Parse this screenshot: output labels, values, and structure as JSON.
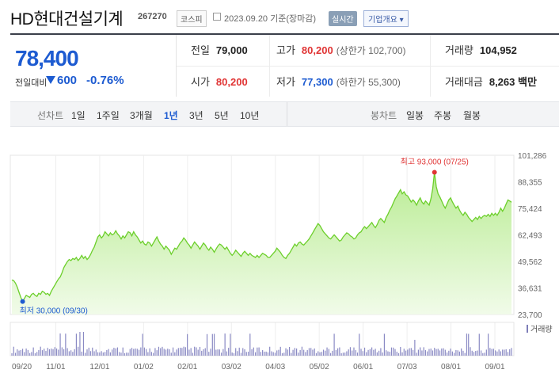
{
  "stock": {
    "name": "HD현대건설기계",
    "code": "267270",
    "market": "코스피",
    "date": "2023.09.20 기준(장마감)",
    "realtime_label": "실시간",
    "overview_label": "기업개요 ▾"
  },
  "price": {
    "current": "78,400",
    "compare_label": "전일대비",
    "change": "600",
    "change_pct": "-0.76%"
  },
  "stats": {
    "prev_label": "전일",
    "prev": "79,000",
    "high_label": "고가",
    "high": "80,200",
    "upper_label": "(상한가 102,700)",
    "volume_label": "거래량",
    "volume": "104,952",
    "open_label": "시가",
    "open": "80,200",
    "low_label": "저가",
    "low": "77,300",
    "lower_label": "(하한가 55,300)",
    "amount_label": "거래대금",
    "amount": "8,263",
    "amount_unit": "백만"
  },
  "periods": {
    "line_label": "선차트",
    "items": [
      "1일",
      "1주일",
      "3개월",
      "1년",
      "3년",
      "5년",
      "10년"
    ],
    "selected": "1년",
    "candle_label": "봉차트",
    "candle_items": [
      "일봉",
      "주봉",
      "월봉"
    ]
  },
  "colors": {
    "accent_blue": "#1d5bd1",
    "up_red": "#e03434",
    "area_green": "#8fd656"
  },
  "chart_data": {
    "type": "area",
    "y_ticks": [
      "101,286",
      "88,355",
      "75,424",
      "62,493",
      "49,562",
      "36,631",
      "23,700"
    ],
    "ylim": [
      23700,
      101286
    ],
    "x_labels": [
      "09/20",
      "11/01",
      "12/01",
      "01/02",
      "02/01",
      "03/02",
      "04/03",
      "05/02",
      "06/01",
      "07/03",
      "08/01",
      "09/01"
    ],
    "max_label": "최고 93,000 (07/25)",
    "min_label": "최저 30,000 (09/30)",
    "volume_label": "거래량",
    "series": [
      {
        "values": [
          40500,
          40200,
          39000,
          37000,
          34500,
          32000,
          30000,
          31500,
          33000,
          32500,
          32000,
          33500,
          34000,
          33000,
          32500,
          34000,
          33500,
          35000,
          34500,
          33500,
          34000,
          33000,
          35000,
          36500,
          38000,
          39500,
          41000,
          42000,
          44000,
          46500,
          48000,
          49500,
          50500,
          50000,
          51000,
          50500,
          51500,
          50000,
          51000,
          52500,
          51000,
          52000,
          50500,
          51500,
          53000,
          55000,
          56500,
          59000,
          61500,
          62500,
          61000,
          62000,
          64000,
          63000,
          62000,
          63500,
          62500,
          63000,
          64500,
          63000,
          62000,
          60500,
          62000,
          61000,
          62500,
          64000,
          63500,
          62000,
          64000,
          62500,
          61500,
          60000,
          58500,
          59500,
          58000,
          57500,
          59000,
          58500,
          57000,
          58500,
          60000,
          61500,
          59500,
          58000,
          57000,
          55500,
          57000,
          56000,
          55000,
          53000,
          54500,
          56000,
          55500,
          57000,
          58500,
          59500,
          61000,
          60000,
          58500,
          57500,
          56000,
          57500,
          59000,
          58000,
          57000,
          55500,
          57000,
          58500,
          57500,
          56000,
          55000,
          56500,
          55500,
          54000,
          55500,
          57000,
          58000,
          57500,
          56500,
          55500,
          56500,
          55000,
          53500,
          52500,
          53500,
          55000,
          54000,
          53000,
          52000,
          53500,
          54500,
          53500,
          52500,
          53500,
          52500,
          52000,
          51500,
          52500,
          51500,
          52500,
          53500,
          53000,
          52500,
          51500,
          51500,
          52500,
          53500,
          54500,
          56000,
          55000,
          54000,
          52500,
          51500,
          51000,
          52500,
          53500,
          55000,
          56500,
          58000,
          57000,
          58500,
          59000,
          58000,
          57500,
          58500,
          59500,
          60500,
          62000,
          63500,
          65000,
          66500,
          68000,
          67000,
          65500,
          64000,
          63000,
          62000,
          61000,
          60500,
          61500,
          62500,
          61500,
          60500,
          59500,
          60000,
          61500,
          62500,
          63500,
          63000,
          62000,
          61500,
          60500,
          61000,
          62500,
          63500,
          64000,
          65500,
          66500,
          65500,
          66500,
          67500,
          68500,
          67000,
          66000,
          67500,
          69500,
          70500,
          69500,
          68500,
          71000,
          72500,
          74500,
          76000,
          78000,
          80000,
          81500,
          83000,
          84500,
          82500,
          83500,
          82000,
          81500,
          80000,
          78500,
          79500,
          78500,
          77000,
          79000,
          80500,
          78500,
          77500,
          79000,
          78000,
          77000,
          80000,
          85000,
          93000,
          86000,
          82500,
          81000,
          79000,
          77000,
          75500,
          77500,
          79500,
          80500,
          78500,
          77000,
          75500,
          76500,
          74500,
          73000,
          72000,
          73500,
          72500,
          71000,
          70000,
          69000,
          70000,
          71000,
          70000,
          71500,
          70500,
          71500,
          72000,
          71500,
          72500,
          71500,
          73000,
          72000,
          73000,
          72000,
          73500,
          75500,
          74000,
          75500,
          77500,
          79500,
          79000,
          78400
        ]
      }
    ]
  }
}
